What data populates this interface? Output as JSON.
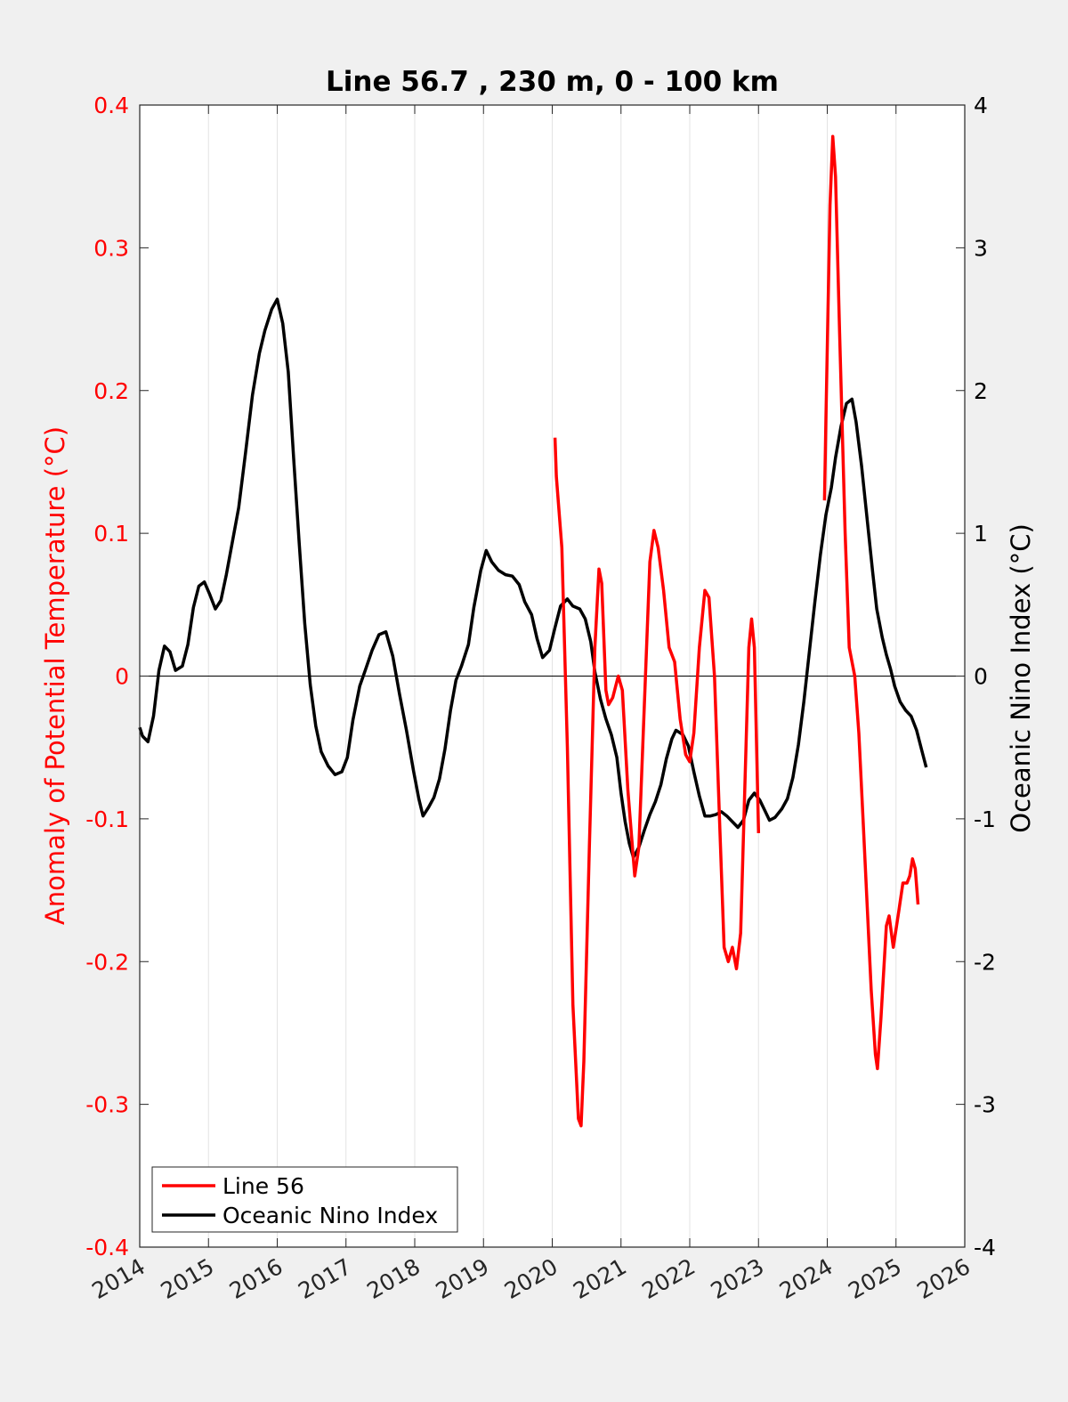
{
  "chart_data": {
    "type": "line",
    "title": "Line 56.7 , 230 m, 0 - 100 km",
    "ylabel": "Anomaly of Potential Temperature (°C)",
    "y2label": "Oceanic Nino Index (°C)",
    "xlim": [
      2014,
      2026
    ],
    "ylim": [
      -0.4,
      0.4
    ],
    "y2lim": [
      -4,
      4
    ],
    "x_ticks": [
      "2014",
      "2015",
      "2016",
      "2017",
      "2018",
      "2019",
      "2020",
      "2021",
      "2022",
      "2023",
      "2024",
      "2025",
      "2026"
    ],
    "y_ticks": [
      "-0.4",
      "-0.3",
      "-0.2",
      "-0.1",
      "0",
      "0.1",
      "0.2",
      "0.3",
      "0.4"
    ],
    "y2_ticks": [
      "-4",
      "-3",
      "-2",
      "-1",
      "0",
      "1",
      "2",
      "3",
      "4"
    ],
    "grid": "vertical",
    "zero_line": true,
    "legend_position": "bottom-left",
    "colors": {
      "line56": "#ff0000",
      "oni": "#000000"
    },
    "series": [
      {
        "name": "Line 56",
        "axis": "left",
        "segments": [
          [
            [
              2020.04,
              0.167
            ],
            [
              2020.06,
              0.14
            ],
            [
              2020.14,
              0.09
            ],
            [
              2020.22,
              -0.05
            ],
            [
              2020.3,
              -0.23
            ],
            [
              2020.38,
              -0.31
            ],
            [
              2020.42,
              -0.315
            ],
            [
              2020.46,
              -0.27
            ],
            [
              2020.54,
              -0.12
            ],
            [
              2020.62,
              0.02
            ],
            [
              2020.68,
              0.075
            ],
            [
              2020.72,
              0.065
            ],
            [
              2020.78,
              -0.01
            ],
            [
              2020.82,
              -0.02
            ],
            [
              2020.88,
              -0.015
            ],
            [
              2020.96,
              0.0
            ],
            [
              2021.02,
              -0.01
            ],
            [
              2021.1,
              -0.08
            ],
            [
              2021.2,
              -0.14
            ],
            [
              2021.26,
              -0.12
            ],
            [
              2021.34,
              -0.02
            ],
            [
              2021.42,
              0.08
            ],
            [
              2021.48,
              0.102
            ],
            [
              2021.54,
              0.09
            ],
            [
              2021.62,
              0.06
            ],
            [
              2021.7,
              0.02
            ],
            [
              2021.78,
              0.01
            ],
            [
              2021.86,
              -0.03
            ],
            [
              2021.94,
              -0.055
            ],
            [
              2022.0,
              -0.06
            ],
            [
              2022.06,
              -0.04
            ],
            [
              2022.14,
              0.02
            ],
            [
              2022.22,
              0.06
            ],
            [
              2022.28,
              0.055
            ],
            [
              2022.36,
              0.0
            ],
            [
              2022.44,
              -0.11
            ],
            [
              2022.5,
              -0.19
            ],
            [
              2022.56,
              -0.2
            ],
            [
              2022.62,
              -0.19
            ],
            [
              2022.68,
              -0.205
            ],
            [
              2022.74,
              -0.18
            ],
            [
              2022.8,
              -0.08
            ],
            [
              2022.86,
              0.02
            ],
            [
              2022.9,
              0.04
            ],
            [
              2022.94,
              0.02
            ],
            [
              2023.0,
              -0.11
            ]
          ],
          [
            [
              2023.96,
              0.123
            ],
            [
              2023.98,
              0.18
            ],
            [
              2024.04,
              0.33
            ],
            [
              2024.08,
              0.378
            ],
            [
              2024.12,
              0.35
            ],
            [
              2024.18,
              0.24
            ],
            [
              2024.26,
              0.1
            ],
            [
              2024.32,
              0.02
            ],
            [
              2024.4,
              0.0
            ],
            [
              2024.46,
              -0.04
            ],
            [
              2024.52,
              -0.1
            ],
            [
              2024.58,
              -0.16
            ],
            [
              2024.64,
              -0.22
            ],
            [
              2024.7,
              -0.265
            ],
            [
              2024.73,
              -0.275
            ],
            [
              2024.78,
              -0.24
            ],
            [
              2024.86,
              -0.175
            ],
            [
              2024.9,
              -0.168
            ],
            [
              2024.96,
              -0.19
            ],
            [
              2025.04,
              -0.165
            ],
            [
              2025.1,
              -0.145
            ],
            [
              2025.16,
              -0.145
            ],
            [
              2025.2,
              -0.14
            ],
            [
              2025.24,
              -0.128
            ],
            [
              2025.28,
              -0.135
            ],
            [
              2025.32,
              -0.16
            ]
          ]
        ]
      },
      {
        "name": "Oceanic Nino Index",
        "axis": "right",
        "segments": [
          [
            [
              2014.0,
              -0.36
            ],
            [
              2014.04,
              -0.42
            ],
            [
              2014.12,
              -0.46
            ],
            [
              2014.2,
              -0.28
            ],
            [
              2014.28,
              0.04
            ],
            [
              2014.36,
              0.21
            ],
            [
              2014.44,
              0.17
            ],
            [
              2014.52,
              0.04
            ],
            [
              2014.62,
              0.07
            ],
            [
              2014.7,
              0.22
            ],
            [
              2014.78,
              0.48
            ],
            [
              2014.86,
              0.63
            ],
            [
              2014.94,
              0.66
            ],
            [
              2015.02,
              0.57
            ],
            [
              2015.1,
              0.47
            ],
            [
              2015.18,
              0.53
            ],
            [
              2015.26,
              0.71
            ],
            [
              2015.34,
              0.92
            ],
            [
              2015.44,
              1.18
            ],
            [
              2015.54,
              1.57
            ],
            [
              2015.64,
              1.97
            ],
            [
              2015.74,
              2.26
            ],
            [
              2015.82,
              2.42
            ],
            [
              2015.92,
              2.57
            ],
            [
              2016.0,
              2.64
            ],
            [
              2016.08,
              2.47
            ],
            [
              2016.16,
              2.13
            ],
            [
              2016.24,
              1.52
            ],
            [
              2016.32,
              0.93
            ],
            [
              2016.4,
              0.37
            ],
            [
              2016.48,
              -0.06
            ],
            [
              2016.56,
              -0.35
            ],
            [
              2016.64,
              -0.53
            ],
            [
              2016.74,
              -0.63
            ],
            [
              2016.84,
              -0.69
            ],
            [
              2016.94,
              -0.67
            ],
            [
              2017.02,
              -0.57
            ],
            [
              2017.1,
              -0.31
            ],
            [
              2017.2,
              -0.07
            ],
            [
              2017.28,
              0.04
            ],
            [
              2017.38,
              0.18
            ],
            [
              2017.48,
              0.29
            ],
            [
              2017.58,
              0.31
            ],
            [
              2017.68,
              0.14
            ],
            [
              2017.78,
              -0.13
            ],
            [
              2017.88,
              -0.38
            ],
            [
              2017.98,
              -0.66
            ],
            [
              2018.06,
              -0.86
            ],
            [
              2018.12,
              -0.98
            ],
            [
              2018.2,
              -0.92
            ],
            [
              2018.28,
              -0.85
            ],
            [
              2018.36,
              -0.72
            ],
            [
              2018.44,
              -0.51
            ],
            [
              2018.52,
              -0.24
            ],
            [
              2018.6,
              -0.03
            ],
            [
              2018.68,
              0.07
            ],
            [
              2018.78,
              0.22
            ],
            [
              2018.86,
              0.48
            ],
            [
              2018.96,
              0.74
            ],
            [
              2019.04,
              0.88
            ],
            [
              2019.12,
              0.8
            ],
            [
              2019.22,
              0.74
            ],
            [
              2019.32,
              0.71
            ],
            [
              2019.42,
              0.7
            ],
            [
              2019.52,
              0.64
            ],
            [
              2019.6,
              0.52
            ],
            [
              2019.7,
              0.43
            ],
            [
              2019.78,
              0.26
            ],
            [
              2019.86,
              0.13
            ],
            [
              2019.96,
              0.18
            ],
            [
              2020.04,
              0.34
            ],
            [
              2020.12,
              0.49
            ],
            [
              2020.22,
              0.54
            ],
            [
              2020.3,
              0.49
            ],
            [
              2020.4,
              0.47
            ],
            [
              2020.48,
              0.4
            ],
            [
              2020.56,
              0.24
            ],
            [
              2020.62,
              0.03
            ],
            [
              2020.7,
              -0.16
            ],
            [
              2020.78,
              -0.3
            ],
            [
              2020.86,
              -0.41
            ],
            [
              2020.94,
              -0.57
            ],
            [
              2021.0,
              -0.82
            ],
            [
              2021.06,
              -1.02
            ],
            [
              2021.12,
              -1.17
            ],
            [
              2021.18,
              -1.27
            ],
            [
              2021.26,
              -1.2
            ],
            [
              2021.34,
              -1.08
            ],
            [
              2021.42,
              -0.97
            ],
            [
              2021.5,
              -0.88
            ],
            [
              2021.58,
              -0.76
            ],
            [
              2021.66,
              -0.58
            ],
            [
              2021.74,
              -0.44
            ],
            [
              2021.8,
              -0.38
            ],
            [
              2021.9,
              -0.41
            ],
            [
              2021.98,
              -0.49
            ],
            [
              2022.06,
              -0.67
            ],
            [
              2022.14,
              -0.84
            ],
            [
              2022.22,
              -0.98
            ],
            [
              2022.3,
              -0.98
            ],
            [
              2022.38,
              -0.97
            ],
            [
              2022.46,
              -0.95
            ],
            [
              2022.54,
              -0.98
            ],
            [
              2022.62,
              -1.02
            ],
            [
              2022.7,
              -1.06
            ],
            [
              2022.78,
              -1.01
            ],
            [
              2022.86,
              -0.87
            ],
            [
              2022.94,
              -0.82
            ],
            [
              2023.02,
              -0.87
            ],
            [
              2023.1,
              -0.95
            ],
            [
              2023.16,
              -1.01
            ],
            [
              2023.24,
              -0.99
            ],
            [
              2023.34,
              -0.93
            ],
            [
              2023.42,
              -0.86
            ],
            [
              2023.5,
              -0.71
            ],
            [
              2023.58,
              -0.48
            ],
            [
              2023.66,
              -0.18
            ],
            [
              2023.74,
              0.17
            ],
            [
              2023.82,
              0.52
            ],
            [
              2023.9,
              0.85
            ],
            [
              2023.98,
              1.13
            ],
            [
              2024.06,
              1.32
            ],
            [
              2024.12,
              1.53
            ],
            [
              2024.2,
              1.75
            ],
            [
              2024.28,
              1.91
            ],
            [
              2024.36,
              1.94
            ],
            [
              2024.42,
              1.78
            ],
            [
              2024.5,
              1.47
            ],
            [
              2024.58,
              1.1
            ],
            [
              2024.66,
              0.73
            ],
            [
              2024.72,
              0.47
            ],
            [
              2024.8,
              0.27
            ],
            [
              2024.86,
              0.15
            ],
            [
              2024.92,
              0.05
            ],
            [
              2024.98,
              -0.07
            ],
            [
              2025.06,
              -0.18
            ],
            [
              2025.14,
              -0.24
            ],
            [
              2025.22,
              -0.28
            ],
            [
              2025.3,
              -0.38
            ],
            [
              2025.38,
              -0.53
            ],
            [
              2025.44,
              -0.64
            ]
          ]
        ]
      }
    ]
  }
}
